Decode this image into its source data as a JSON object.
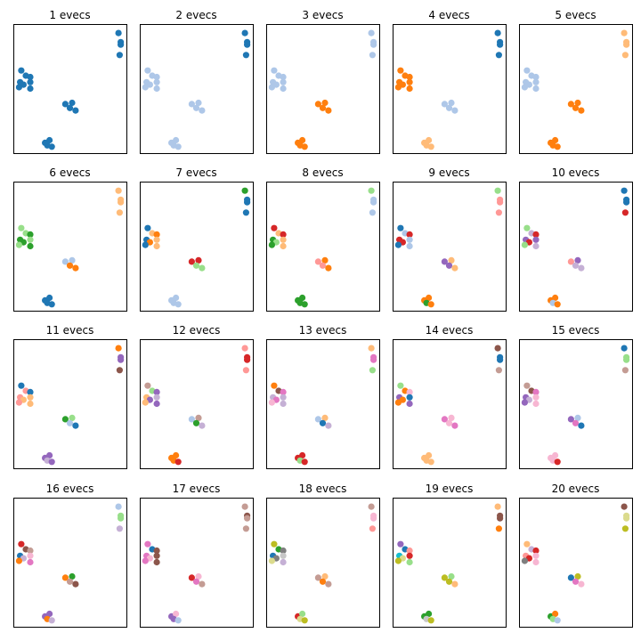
{
  "chart_data": {
    "type": "scatter",
    "grid": false,
    "axes_ticks_visible": false,
    "xlim": [
      0,
      1
    ],
    "ylim": [
      0,
      1
    ],
    "palette": [
      "#1f77b4",
      "#aec7e8",
      "#ff7f0e",
      "#ffbb78",
      "#2ca02c",
      "#98df8a",
      "#d62728",
      "#ff9896",
      "#9467bd",
      "#c5b0d5",
      "#8c564b",
      "#c49c94",
      "#e377c2",
      "#f7b6d2",
      "#7f7f7f",
      "#c7c7c7",
      "#bcbd22",
      "#dbdb8d",
      "#17becf",
      "#9edae5"
    ],
    "base_points": [
      [
        0.93,
        0.93
      ],
      [
        0.95,
        0.86
      ],
      [
        0.95,
        0.84
      ],
      [
        0.94,
        0.76
      ],
      [
        0.07,
        0.64
      ],
      [
        0.11,
        0.6
      ],
      [
        0.15,
        0.59
      ],
      [
        0.06,
        0.55
      ],
      [
        0.15,
        0.55
      ],
      [
        0.09,
        0.53
      ],
      [
        0.05,
        0.51
      ],
      [
        0.15,
        0.5
      ],
      [
        0.46,
        0.38
      ],
      [
        0.52,
        0.39
      ],
      [
        0.5,
        0.35
      ],
      [
        0.55,
        0.33
      ],
      [
        0.28,
        0.08
      ],
      [
        0.32,
        0.1
      ],
      [
        0.3,
        0.06
      ],
      [
        0.34,
        0.05
      ]
    ],
    "panels": [
      {
        "title": "1 evecs",
        "colors": [
          0,
          0,
          0,
          0,
          0,
          0,
          0,
          0,
          0,
          0,
          0,
          0,
          0,
          0,
          0,
          0,
          0,
          0,
          0,
          0
        ]
      },
      {
        "title": "2 evecs",
        "colors": [
          0,
          0,
          0,
          0,
          1,
          1,
          1,
          1,
          1,
          1,
          1,
          1,
          1,
          1,
          1,
          1,
          1,
          1,
          1,
          1
        ]
      },
      {
        "title": "3 evecs",
        "colors": [
          1,
          1,
          1,
          1,
          1,
          1,
          1,
          1,
          1,
          1,
          1,
          1,
          2,
          2,
          2,
          2,
          2,
          2,
          2,
          2
        ]
      },
      {
        "title": "4 evecs",
        "colors": [
          0,
          0,
          0,
          0,
          2,
          2,
          2,
          2,
          2,
          2,
          2,
          2,
          1,
          1,
          1,
          1,
          3,
          3,
          3,
          3
        ]
      },
      {
        "title": "5 evecs",
        "colors": [
          3,
          3,
          3,
          3,
          1,
          1,
          1,
          1,
          1,
          1,
          1,
          1,
          2,
          2,
          2,
          2,
          2,
          2,
          2,
          2
        ]
      },
      {
        "title": "6 evecs",
        "colors": [
          3,
          3,
          3,
          3,
          5,
          5,
          4,
          4,
          5,
          4,
          5,
          4,
          1,
          1,
          2,
          2,
          0,
          0,
          0,
          0
        ]
      },
      {
        "title": "7 evecs",
        "colors": [
          4,
          0,
          0,
          0,
          0,
          3,
          2,
          0,
          3,
          2,
          0,
          3,
          6,
          6,
          5,
          5,
          1,
          1,
          1,
          1
        ]
      },
      {
        "title": "8 evecs",
        "colors": [
          5,
          1,
          1,
          1,
          6,
          3,
          6,
          4,
          3,
          5,
          4,
          3,
          7,
          2,
          7,
          2,
          4,
          4,
          4,
          4
        ]
      },
      {
        "title": "9 evecs",
        "colors": [
          5,
          7,
          7,
          7,
          0,
          1,
          6,
          6,
          1,
          6,
          0,
          1,
          8,
          3,
          8,
          3,
          2,
          2,
          4,
          2
        ]
      },
      {
        "title": "10 evecs",
        "colors": [
          0,
          0,
          0,
          6,
          5,
          9,
          6,
          8,
          8,
          6,
          5,
          9,
          7,
          8,
          9,
          9,
          2,
          2,
          1,
          2
        ]
      },
      {
        "title": "11 evecs",
        "colors": [
          2,
          8,
          8,
          10,
          0,
          7,
          0,
          7,
          3,
          3,
          7,
          3,
          4,
          5,
          1,
          0,
          8,
          8,
          9,
          8
        ]
      },
      {
        "title": "12 evecs",
        "colors": [
          7,
          6,
          6,
          7,
          11,
          5,
          8,
          3,
          9,
          8,
          3,
          8,
          1,
          11,
          4,
          9,
          2,
          2,
          2,
          6
        ]
      },
      {
        "title": "13 evecs",
        "colors": [
          3,
          12,
          12,
          5,
          2,
          10,
          12,
          9,
          9,
          12,
          13,
          9,
          1,
          3,
          0,
          9,
          6,
          6,
          5,
          6
        ]
      },
      {
        "title": "14 evecs",
        "colors": [
          10,
          0,
          0,
          11,
          5,
          2,
          13,
          8,
          0,
          2,
          2,
          8,
          12,
          13,
          13,
          12,
          3,
          3,
          3,
          3
        ]
      },
      {
        "title": "15 evecs",
        "colors": [
          0,
          5,
          5,
          11,
          11,
          10,
          12,
          8,
          13,
          9,
          8,
          13,
          8,
          1,
          12,
          0,
          13,
          13,
          13,
          6
        ]
      },
      {
        "title": "16 evecs",
        "colors": [
          1,
          5,
          5,
          9,
          6,
          10,
          11,
          0,
          13,
          9,
          2,
          12,
          2,
          4,
          11,
          10,
          8,
          8,
          2,
          9
        ]
      },
      {
        "title": "17 evecs",
        "colors": [
          11,
          10,
          11,
          11,
          12,
          0,
          10,
          12,
          10,
          13,
          12,
          10,
          6,
          13,
          12,
          11,
          8,
          13,
          8,
          1
        ]
      },
      {
        "title": "18 evecs",
        "colors": [
          11,
          13,
          13,
          7,
          16,
          4,
          14,
          0,
          15,
          14,
          17,
          9,
          11,
          3,
          2,
          11,
          6,
          5,
          17,
          16
        ]
      },
      {
        "title": "19 evecs",
        "colors": [
          3,
          10,
          10,
          2,
          8,
          0,
          7,
          18,
          6,
          17,
          16,
          5,
          16,
          5,
          16,
          3,
          4,
          4,
          15,
          16
        ]
      },
      {
        "title": "20 evecs",
        "colors": [
          10,
          17,
          17,
          16,
          3,
          9,
          6,
          7,
          13,
          6,
          14,
          13,
          0,
          16,
          12,
          13,
          4,
          2,
          5,
          1
        ]
      }
    ]
  }
}
